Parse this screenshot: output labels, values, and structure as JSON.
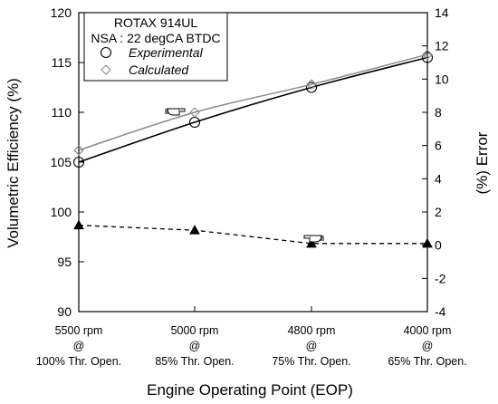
{
  "chart_data": {
    "type": "line",
    "legend": {
      "title_line1": "ROTAX 914UL",
      "title_line2": "NSA : 22 degCA BTDC",
      "experimental_label": "Experimental",
      "calculated_label": "Calculated",
      "placement": "top-left"
    },
    "xlabel": "Engine Operating Point (EOP)",
    "ylabel_left": "Volumetric Efficiency (%)",
    "ylabel_right": "(%) Error",
    "ylim_left": [
      90,
      120
    ],
    "yticks_left": [
      90,
      95,
      100,
      105,
      110,
      115,
      120
    ],
    "ylim_right": [
      -4,
      14
    ],
    "yticks_right": [
      -4,
      -2,
      0,
      2,
      4,
      6,
      8,
      10,
      12,
      14
    ],
    "categories": [
      {
        "rpm": "5500 rpm",
        "at": "@",
        "throttle": "100% Thr. Open."
      },
      {
        "rpm": "5000 rpm",
        "at": "@",
        "throttle": "85% Thr. Open."
      },
      {
        "rpm": "4800 rpm",
        "at": "@",
        "throttle": "75% Thr. Open."
      },
      {
        "rpm": "4000 rpm",
        "at": "@",
        "throttle": "65% Thr. Open."
      }
    ],
    "series": [
      {
        "name": "Experimental",
        "axis": "left",
        "values": [
          105.0,
          109.0,
          112.5,
          115.5
        ],
        "color": "#000000",
        "marker": "circle",
        "line": "solid"
      },
      {
        "name": "Calculated",
        "axis": "left",
        "values": [
          106.2,
          110.0,
          112.8,
          115.8
        ],
        "color": "#888888",
        "marker": "diamond",
        "line": "solid"
      },
      {
        "axis": "right",
        "values": [
          1.2,
          0.9,
          0.1,
          0.1
        ],
        "color": "#000000",
        "marker": "triangle",
        "line": "dashed"
      }
    ],
    "annotations": [
      {
        "points_to": "left-axis",
        "near_category": 1,
        "icon": "pointing-hand-icon"
      },
      {
        "points_to": "right-axis",
        "near_category": 2,
        "icon": "pointing-hand-icon"
      }
    ],
    "grid": false
  }
}
